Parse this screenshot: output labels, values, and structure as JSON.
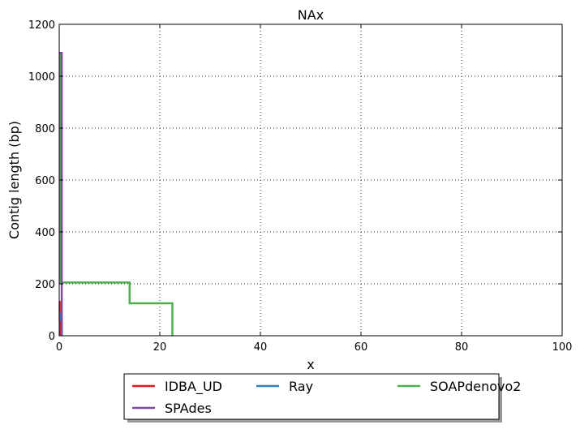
{
  "chart_data": {
    "type": "line",
    "title": "NAx",
    "xlabel": "x",
    "ylabel": "Contig length  (bp)",
    "xlim": [
      0,
      100
    ],
    "ylim": [
      0,
      1200
    ],
    "xticks": [
      0,
      20,
      40,
      60,
      80,
      100
    ],
    "yticks": [
      0,
      200,
      400,
      600,
      800,
      1000,
      1200
    ],
    "grid": true,
    "legend_position": "bottom-center, below plot, 3 columns",
    "series": [
      {
        "name": "IDBA_UD",
        "color": "#e41a1c",
        "x": [
          0,
          0.1,
          0.1,
          0.15,
          0.15
        ],
        "y": [
          130,
          130,
          60,
          60,
          0
        ]
      },
      {
        "name": "Ray",
        "color": "#377eb8",
        "x": [
          0,
          0.3,
          0.3,
          0.5,
          0.5
        ],
        "y": [
          85,
          85,
          60,
          60,
          0
        ]
      },
      {
        "name": "SOAPdenovo2",
        "color": "#4daf4a",
        "x": [
          0,
          0.2,
          0.2,
          14,
          14,
          22.5,
          22.5
        ],
        "y": [
          1090,
          1090,
          205,
          205,
          125,
          125,
          0
        ]
      },
      {
        "name": "SPAdes",
        "color": "#7e4aa0",
        "x": [
          0,
          0.5,
          0.5
        ],
        "y": [
          1090,
          1090,
          0
        ]
      }
    ]
  }
}
